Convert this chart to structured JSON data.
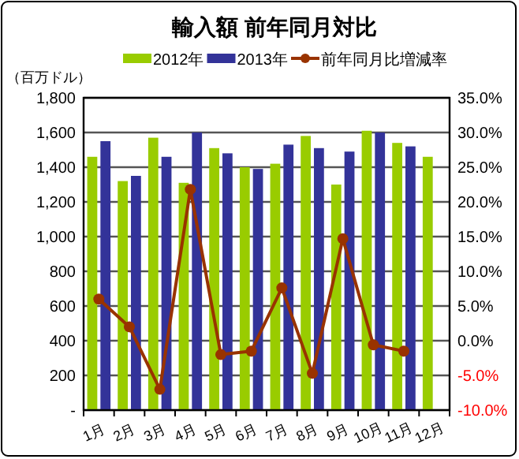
{
  "chart_data": {
    "type": "bar",
    "title": "輸入額 前年同月対比",
    "ylabel": "（百万ドル）",
    "categories": [
      "1月",
      "2月",
      "3月",
      "4月",
      "5月",
      "6月",
      "7月",
      "8月",
      "9月",
      "10月",
      "11月",
      "12月"
    ],
    "series": [
      {
        "name": "2012年",
        "color": "#99cc00",
        "values": [
          1460,
          1320,
          1570,
          1310,
          1510,
          1400,
          1420,
          1580,
          1300,
          1610,
          1540,
          1460
        ]
      },
      {
        "name": "2013年",
        "color": "#333399",
        "values": [
          1550,
          1350,
          1460,
          1600,
          1480,
          1390,
          1530,
          1510,
          1490,
          1600,
          1520,
          null
        ]
      },
      {
        "name": "前年同月比増減率",
        "type": "line",
        "axis": "y2",
        "color": "#993300",
        "marker": "circle",
        "values": [
          6.0,
          2.0,
          -7.0,
          21.8,
          -2.0,
          -1.5,
          7.6,
          -4.7,
          14.7,
          -0.6,
          -1.5,
          null
        ]
      }
    ],
    "ylim": [
      0,
      1800
    ],
    "yticks": [
      {
        "value": 0,
        "label": "-"
      },
      {
        "value": 200,
        "label": "200"
      },
      {
        "value": 400,
        "label": "400"
      },
      {
        "value": 600,
        "label": "600"
      },
      {
        "value": 800,
        "label": "800"
      },
      {
        "value": 1000,
        "label": "1,000"
      },
      {
        "value": 1200,
        "label": "1,200"
      },
      {
        "value": 1400,
        "label": "1,400"
      },
      {
        "value": 1600,
        "label": "1,600"
      },
      {
        "value": 1800,
        "label": "1,800"
      }
    ],
    "y2lim": [
      -10,
      35
    ],
    "y2ticks": [
      {
        "value": -10,
        "label": "-10.0%"
      },
      {
        "value": -5,
        "label": "-5.0%"
      },
      {
        "value": 0,
        "label": "0.0%"
      },
      {
        "value": 5,
        "label": "5.0%"
      },
      {
        "value": 10,
        "label": "10.0%"
      },
      {
        "value": 15,
        "label": "15.0%"
      },
      {
        "value": 20,
        "label": "20.0%"
      },
      {
        "value": 25,
        "label": "25.0%"
      },
      {
        "value": 30,
        "label": "30.0%"
      },
      {
        "value": 35,
        "label": "35.0%"
      }
    ],
    "grid": "y",
    "legend": "top"
  }
}
